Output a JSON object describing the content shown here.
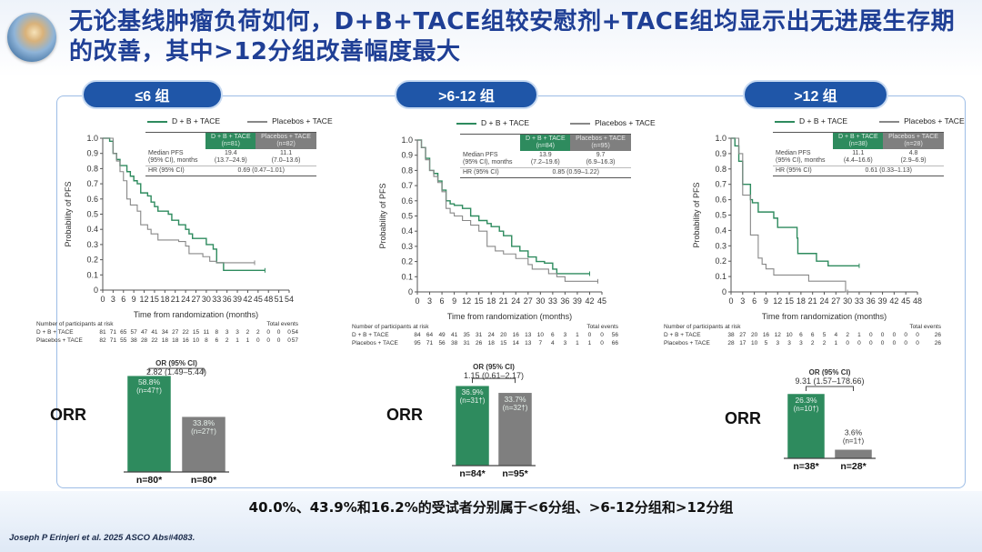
{
  "title": "无论基线肿瘤负荷如何，D+B+TACE组较安慰剂+TACE组均显示出无进展生存期的改善，其中>12分组改善幅度最大",
  "footer": "40.0%、43.9%和16.2%的受试者分别属于<6分组、>6-12分组和>12分组",
  "citation": "Joseph P Erinjeri et al. 2025 ASCO Abs#4083.",
  "colors": {
    "treatment": "#2e8b5e",
    "placebo": "#7f7f7f",
    "pill": "#1f56a8",
    "title": "#1f3f95"
  },
  "legend": {
    "treatment": "D + B + TACE",
    "placebo": "Placebos + TACE"
  },
  "orr_label": "ORR",
  "chart_data": [
    {
      "type": "line",
      "group": "≤6 组",
      "xlabel": "Time from randomization (months)",
      "ylabel": "Probability of PFS",
      "xlim": [
        0,
        54
      ],
      "xstep": 3,
      "ylim": [
        0,
        1
      ],
      "ystep": 0.1,
      "yticks": [
        "0",
        "0.1",
        "0.2",
        "0.3",
        "0.4",
        "0.5",
        "0.6",
        "0.7",
        "0.8",
        "0.9",
        "1.0"
      ],
      "table": {
        "h_treat": "D + B + TACE",
        "n_treat": "(n=81)",
        "h_plac": "Placebos + TACE",
        "n_plac": "(n=82)",
        "mpfs_label1": "Median PFS",
        "mpfs_label2": "(95% CI), months",
        "mpfs_treat": "19.4",
        "ci_treat": "(13.7–24.9)",
        "mpfs_plac": "11.1",
        "ci_plac": "(7.0–13.6)",
        "hr_label": "HR (95% CI)",
        "hr": "0.69 (0.47–1.01)"
      },
      "risk": {
        "header": "Number of participants at risk",
        "total_header": "Total events",
        "treat_label": "D + B + TACE",
        "plac_label": "Placebos + TACE",
        "treat": [
          "81",
          "71",
          "65",
          "57",
          "47",
          "41",
          "34",
          "27",
          "22",
          "15",
          "11",
          "8",
          "3",
          "3",
          "2",
          "2",
          "0",
          "0",
          "0"
        ],
        "treat_total": "54",
        "plac": [
          "82",
          "71",
          "55",
          "38",
          "28",
          "22",
          "18",
          "18",
          "16",
          "10",
          "8",
          "6",
          "2",
          "1",
          "1",
          "0",
          "0",
          "0",
          "0"
        ],
        "plac_total": "57"
      },
      "series": [
        {
          "name": "D + B + TACE",
          "points": [
            [
              0,
              1
            ],
            [
              2,
              0.98
            ],
            [
              3,
              0.9
            ],
            [
              4,
              0.86
            ],
            [
              5,
              0.82
            ],
            [
              7,
              0.78
            ],
            [
              8,
              0.75
            ],
            [
              9,
              0.72
            ],
            [
              10,
              0.7
            ],
            [
              11,
              0.64
            ],
            [
              13,
              0.62
            ],
            [
              14,
              0.58
            ],
            [
              15,
              0.55
            ],
            [
              16,
              0.52
            ],
            [
              19,
              0.5
            ],
            [
              20,
              0.46
            ],
            [
              22,
              0.43
            ],
            [
              24,
              0.4
            ],
            [
              25,
              0.37
            ],
            [
              26,
              0.34
            ],
            [
              30,
              0.3
            ],
            [
              32,
              0.27
            ],
            [
              33,
              0.18
            ],
            [
              35,
              0.13
            ],
            [
              47,
              0.13
            ]
          ]
        },
        {
          "name": "Placebos + TACE",
          "points": [
            [
              0,
              1
            ],
            [
              3,
              0.9
            ],
            [
              4,
              0.85
            ],
            [
              5,
              0.78
            ],
            [
              6,
              0.72
            ],
            [
              7,
              0.6
            ],
            [
              8,
              0.56
            ],
            [
              10,
              0.52
            ],
            [
              11,
              0.43
            ],
            [
              13,
              0.4
            ],
            [
              14,
              0.37
            ],
            [
              16,
              0.33
            ],
            [
              22,
              0.32
            ],
            [
              24,
              0.29
            ],
            [
              25,
              0.24
            ],
            [
              29,
              0.22
            ],
            [
              31,
              0.19
            ],
            [
              33,
              0.18
            ],
            [
              44,
              0.18
            ]
          ]
        }
      ],
      "orr": {
        "or_label": "OR (95% CI)",
        "or_value": "2.82 (1.49–5.44)",
        "bars": [
          {
            "value": 58.8,
            "label": "58.8%",
            "n": "(n=47†)",
            "total": "n=80*"
          },
          {
            "value": 33.8,
            "label": "33.8%",
            "n": "(n=27†)",
            "total": "n=80*"
          }
        ]
      }
    },
    {
      "type": "line",
      "group": ">6-12 组",
      "xlabel": "Time from randomization (months)",
      "ylabel": "Probability of PFS",
      "xlim": [
        0,
        45
      ],
      "xstep": 3,
      "ylim": [
        0,
        1
      ],
      "ystep": 0.1,
      "yticks": [
        "0",
        "0.1",
        "0.2",
        "0.3",
        "0.4",
        "0.5",
        "0.6",
        "0.7",
        "0.8",
        "0.9",
        "1.0"
      ],
      "table": {
        "h_treat": "D + B + TACE",
        "n_treat": "(n=84)",
        "h_plac": "Placebos + TACE",
        "n_plac": "(n=95)",
        "mpfs_label1": "Median PFS",
        "mpfs_label2": "(95% CI), months",
        "mpfs_treat": "13.9",
        "ci_treat": "(7.2–19.6)",
        "mpfs_plac": "9.7",
        "ci_plac": "(6.9–16.3)",
        "hr_label": "HR (95% CI)",
        "hr": "0.85 (0.59–1.22)"
      },
      "risk": {
        "header": "Number of participants at risk",
        "total_header": "Total events",
        "treat_label": "D + B + TACE",
        "plac_label": "Placebos + TACE",
        "treat": [
          "84",
          "64",
          "49",
          "41",
          "35",
          "31",
          "24",
          "20",
          "16",
          "13",
          "10",
          "6",
          "3",
          "1",
          "0",
          "0"
        ],
        "treat_total": "56",
        "plac": [
          "95",
          "71",
          "56",
          "38",
          "31",
          "26",
          "18",
          "15",
          "14",
          "13",
          "7",
          "4",
          "3",
          "1",
          "1",
          "0"
        ],
        "plac_total": "66"
      },
      "series": [
        {
          "name": "D + B + TACE",
          "points": [
            [
              0,
              1
            ],
            [
              1,
              0.95
            ],
            [
              2,
              0.88
            ],
            [
              3,
              0.8
            ],
            [
              4,
              0.78
            ],
            [
              5,
              0.73
            ],
            [
              6,
              0.67
            ],
            [
              7,
              0.6
            ],
            [
              8,
              0.58
            ],
            [
              9,
              0.57
            ],
            [
              11,
              0.55
            ],
            [
              13,
              0.5
            ],
            [
              15,
              0.47
            ],
            [
              17,
              0.45
            ],
            [
              18,
              0.43
            ],
            [
              20,
              0.4
            ],
            [
              21,
              0.37
            ],
            [
              23,
              0.3
            ],
            [
              25,
              0.27
            ],
            [
              27,
              0.23
            ],
            [
              29,
              0.2
            ],
            [
              31,
              0.19
            ],
            [
              33,
              0.15
            ],
            [
              34,
              0.12
            ],
            [
              42,
              0.12
            ]
          ]
        },
        {
          "name": "Placebos + TACE",
          "points": [
            [
              0,
              1
            ],
            [
              1,
              0.95
            ],
            [
              2,
              0.87
            ],
            [
              3,
              0.8
            ],
            [
              4,
              0.76
            ],
            [
              5,
              0.72
            ],
            [
              6,
              0.66
            ],
            [
              7,
              0.55
            ],
            [
              8,
              0.52
            ],
            [
              9,
              0.5
            ],
            [
              11,
              0.47
            ],
            [
              13,
              0.44
            ],
            [
              15,
              0.4
            ],
            [
              17,
              0.3
            ],
            [
              19,
              0.27
            ],
            [
              21,
              0.25
            ],
            [
              24,
              0.22
            ],
            [
              27,
              0.18
            ],
            [
              28,
              0.15
            ],
            [
              32,
              0.12
            ],
            [
              34,
              0.1
            ],
            [
              36,
              0.07
            ],
            [
              44,
              0.07
            ]
          ]
        }
      ],
      "orr": {
        "or_label": "OR (95% CI)",
        "or_value": "1.15 (0.61–2.17)",
        "bars": [
          {
            "value": 36.9,
            "label": "36.9%",
            "n": "(n=31†)",
            "total": "n=84*"
          },
          {
            "value": 33.7,
            "label": "33.7%",
            "n": "(n=32†)",
            "total": "n=95*"
          }
        ]
      }
    },
    {
      "type": "line",
      "group": ">12 组",
      "xlabel": "Time from randomization (months)",
      "ylabel": "Probability of PFS",
      "xlim": [
        0,
        48
      ],
      "xstep": 3,
      "ylim": [
        0,
        1
      ],
      "ystep": 0.1,
      "yticks": [
        "0",
        "0.1",
        "0.2",
        "0.3",
        "0.4",
        "0.5",
        "0.6",
        "0.7",
        "0.8",
        "0.9",
        "1.0"
      ],
      "table": {
        "h_treat": "D + B + TACE",
        "n_treat": "(n=38)",
        "h_plac": "Placebos + TACE",
        "n_plac": "(n=28)",
        "mpfs_label1": "Median PFS",
        "mpfs_label2": "(95% CI), months",
        "mpfs_treat": "11.1",
        "ci_treat": "(4.4–16.6)",
        "mpfs_plac": "4.8",
        "ci_plac": "(2.9–6.9)",
        "hr_label": "HR (95% CI)",
        "hr": "0.61 (0.33–1.13)"
      },
      "risk": {
        "header": "Number of participants at risk",
        "total_header": "Total events",
        "treat_label": "D + B + TACE",
        "plac_label": "Placebos + TACE",
        "treat": [
          "38",
          "27",
          "20",
          "16",
          "12",
          "10",
          "6",
          "6",
          "5",
          "4",
          "2",
          "1",
          "0",
          "0",
          "0",
          "0",
          "0"
        ],
        "treat_total": "26",
        "plac": [
          "28",
          "17",
          "10",
          "5",
          "3",
          "3",
          "3",
          "2",
          "2",
          "1",
          "0",
          "0",
          "0",
          "0",
          "0",
          "0",
          "0"
        ],
        "plac_total": "26"
      },
      "series": [
        {
          "name": "D + B + TACE",
          "points": [
            [
              0,
              1
            ],
            [
              1,
              0.95
            ],
            [
              2,
              0.85
            ],
            [
              3,
              0.7
            ],
            [
              5,
              0.6
            ],
            [
              5.5,
              0.58
            ],
            [
              7,
              0.52
            ],
            [
              11,
              0.48
            ],
            [
              12,
              0.42
            ],
            [
              17,
              0.35
            ],
            [
              17.2,
              0.25
            ],
            [
              22,
              0.2
            ],
            [
              25,
              0.17
            ],
            [
              33,
              0.17
            ]
          ]
        },
        {
          "name": "Placebos + TACE",
          "points": [
            [
              0,
              1
            ],
            [
              2,
              0.9
            ],
            [
              3,
              0.63
            ],
            [
              5,
              0.37
            ],
            [
              7,
              0.22
            ],
            [
              8,
              0.18
            ],
            [
              9,
              0.15
            ],
            [
              11,
              0.11
            ],
            [
              20,
              0.07
            ],
            [
              29.5,
              0
            ],
            [
              30,
              0
            ]
          ]
        }
      ],
      "orr": {
        "or_label": "OR (95% CI)",
        "or_value": "9.31 (1.57–178.66)",
        "bars": [
          {
            "value": 26.3,
            "label": "26.3%",
            "n": "(n=10†)",
            "total": "n=38*"
          },
          {
            "value": 3.6,
            "label": "3.6%",
            "n": "(n=1†)",
            "total": "n=28*"
          }
        ]
      }
    }
  ]
}
